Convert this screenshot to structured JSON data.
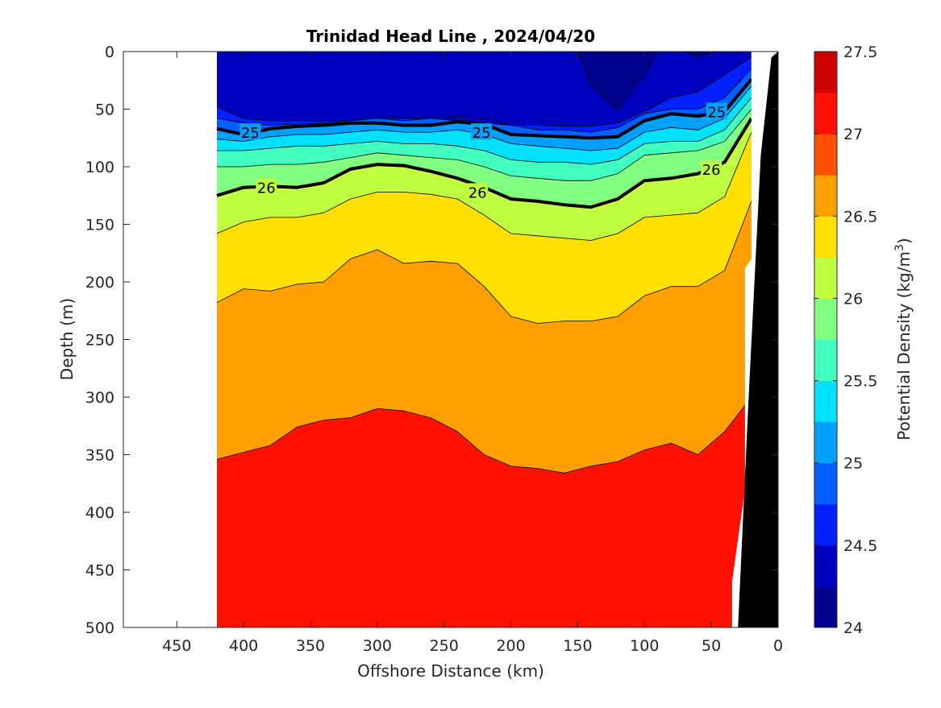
{
  "chart_data": {
    "type": "heatmap",
    "subtype": "filled-contour",
    "title": "Trinidad Head Line , 2024/04/20",
    "xlabel": "Offshore Distance (km)",
    "ylabel": "Depth (m)",
    "colorbar_label_base": "Potential Density (kg/m",
    "colorbar_label_sup": "3",
    "colorbar_label_close": ")",
    "x_reversed": true,
    "y_reversed": true,
    "xlim": [
      0,
      490
    ],
    "ylim": [
      0,
      500
    ],
    "xticks": [
      450,
      400,
      350,
      300,
      250,
      200,
      150,
      100,
      50,
      0
    ],
    "yticks": [
      0,
      50,
      100,
      150,
      200,
      250,
      300,
      350,
      400,
      450,
      500
    ],
    "colorbar_range": [
      24,
      27.5
    ],
    "colorbar_ticks": [
      24,
      24.5,
      25,
      25.5,
      26,
      26.5,
      27,
      27.5
    ],
    "contour_step": 0.25,
    "colormap": [
      "#00008f",
      "#0000bf",
      "#0020ff",
      "#0060ff",
      "#00a0ff",
      "#00e0ff",
      "#40ffbf",
      "#80ff80",
      "#c0ff40",
      "#ffe000",
      "#ffa000",
      "#ff5000",
      "#ff1000",
      "#cf0000"
    ],
    "data_extent_x": [
      420,
      20
    ],
    "x": [
      420,
      400,
      380,
      360,
      340,
      320,
      300,
      280,
      260,
      240,
      220,
      200,
      180,
      160,
      140,
      120,
      100,
      80,
      60,
      40,
      20
    ],
    "contours": [
      {
        "level": 24.25,
        "depths": [
          null,
          null,
          null,
          null,
          null,
          null,
          null,
          null,
          null,
          null,
          null,
          null,
          null,
          null,
          30,
          50,
          20,
          null,
          5,
          null,
          null
        ]
      },
      {
        "level": 24.5,
        "depths": [
          48,
          58,
          60,
          60,
          60,
          60,
          58,
          58,
          58,
          60,
          62,
          64,
          64,
          65,
          65,
          62,
          52,
          40,
          35,
          20,
          5
        ]
      },
      {
        "level": 24.75,
        "depths": [
          58,
          62,
          64,
          63,
          62,
          60,
          58,
          60,
          58,
          56,
          58,
          64,
          68,
          68,
          70,
          66,
          54,
          50,
          50,
          40,
          15
        ]
      },
      {
        "level": 25.0,
        "depths": [
          67,
          72,
          67,
          65,
          64,
          62,
          62,
          64,
          64,
          61,
          63,
          72,
          73,
          74,
          75,
          74,
          60,
          54,
          56,
          52,
          24
        ]
      },
      {
        "level": 25.25,
        "depths": [
          76,
          78,
          74,
          72,
          72,
          70,
          68,
          70,
          70,
          68,
          72,
          80,
          82,
          84,
          86,
          84,
          70,
          66,
          68,
          58,
          30
        ]
      },
      {
        "level": 25.5,
        "depths": [
          86,
          86,
          84,
          82,
          82,
          80,
          78,
          80,
          80,
          82,
          86,
          94,
          96,
          96,
          98,
          94,
          80,
          78,
          78,
          68,
          40
        ]
      },
      {
        "level": 25.75,
        "depths": [
          100,
          100,
          98,
          98,
          96,
          92,
          88,
          90,
          92,
          94,
          100,
          108,
          110,
          112,
          112,
          106,
          90,
          88,
          86,
          78,
          50
        ]
      },
      {
        "level": 26.0,
        "depths": [
          125,
          118,
          117,
          118,
          114,
          102,
          98,
          99,
          104,
          110,
          118,
          128,
          130,
          133,
          135,
          128,
          112,
          110,
          106,
          96,
          58
        ]
      },
      {
        "level": 26.25,
        "depths": [
          158,
          148,
          144,
          144,
          140,
          128,
          122,
          122,
          124,
          128,
          142,
          158,
          160,
          162,
          164,
          158,
          144,
          142,
          140,
          126,
          70
        ]
      },
      {
        "level": 26.5,
        "depths": [
          218,
          206,
          208,
          202,
          200,
          180,
          172,
          184,
          182,
          184,
          204,
          230,
          236,
          234,
          234,
          230,
          212,
          204,
          204,
          190,
          130
        ]
      },
      {
        "level": 26.75,
        "depths": [
          354,
          348,
          342,
          326,
          320,
          318,
          310,
          312,
          318,
          330,
          350,
          360,
          362,
          366,
          360,
          356,
          346,
          340,
          350,
          330,
          300
        ]
      }
    ],
    "contour_labels": [
      {
        "text": "25",
        "x": 395,
        "depth": 70
      },
      {
        "text": "25",
        "x": 222,
        "depth": 70
      },
      {
        "text": "25",
        "x": 46,
        "depth": 52
      },
      {
        "text": "26",
        "x": 383,
        "depth": 118
      },
      {
        "text": "26",
        "x": 225,
        "depth": 122
      },
      {
        "text": "26",
        "x": 50,
        "depth": 102
      }
    ],
    "bathymetry": [
      [
        30,
        500
      ],
      [
        22,
        300
      ],
      [
        13,
        90
      ],
      [
        5,
        5
      ]
    ]
  }
}
